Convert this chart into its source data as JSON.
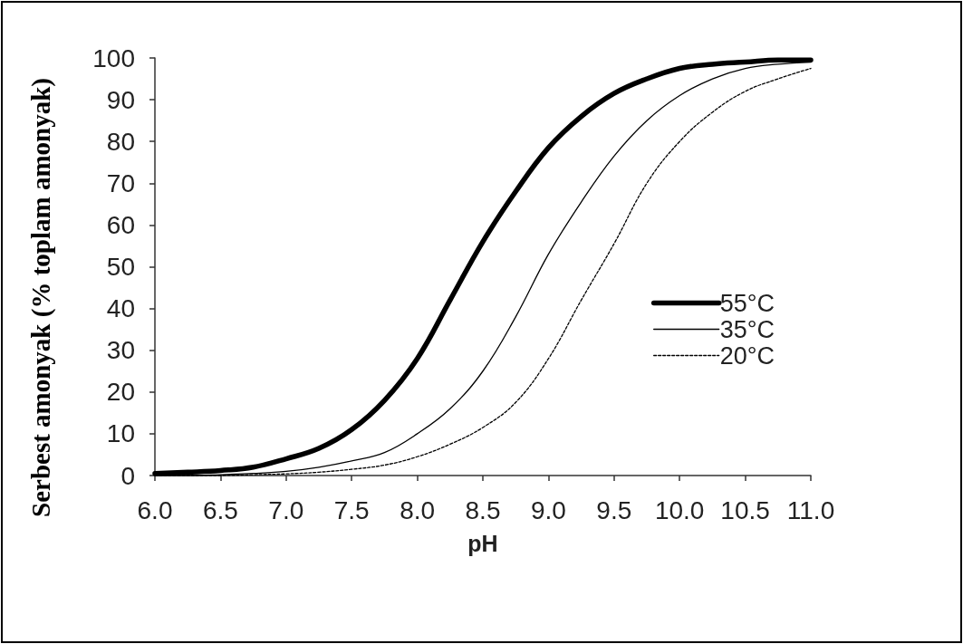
{
  "chart_data": {
    "type": "line",
    "xlabel": "pH",
    "ylabel": "Serbest amonyak (% toplam amonyak)",
    "x": [
      6.0,
      6.25,
      6.5,
      6.75,
      7.0,
      7.25,
      7.5,
      7.75,
      8.0,
      8.25,
      8.5,
      8.75,
      9.0,
      9.25,
      9.5,
      9.75,
      10.0,
      10.25,
      10.5,
      10.75,
      11.0
    ],
    "series": [
      {
        "name": "55°C",
        "color": "#000000",
        "line_style": "solid",
        "values": [
          0.5,
          0.8,
          1.2,
          2,
          4,
          6.5,
          11,
          18,
          28,
          42,
          56,
          68,
          78.5,
          86,
          91.5,
          95,
          97.5,
          98.5,
          99,
          99.5,
          99.5
        ]
      },
      {
        "name": "35°C",
        "color": "#000000",
        "line_style": "solid",
        "values": [
          0,
          0,
          0.2,
          0.5,
          1,
          2,
          3.5,
          5.5,
          10,
          16,
          25,
          38,
          53,
          65.5,
          76.5,
          85,
          91,
          95,
          97.5,
          98.5,
          99
        ]
      },
      {
        "name": "20°C",
        "color": "#000000",
        "line_style": "dashed",
        "values": [
          0,
          0,
          0,
          0.2,
          0.4,
          0.8,
          1.5,
          2.5,
          4.5,
          7.5,
          11.5,
          17.5,
          28,
          42,
          55.5,
          70,
          80,
          87,
          92,
          95,
          97.5
        ]
      }
    ],
    "xlim": [
      6,
      11
    ],
    "ylim": [
      0,
      100
    ],
    "xticks": [
      {
        "value": 6,
        "label": "6.0"
      },
      {
        "value": 6.5,
        "label": "6.5"
      },
      {
        "value": 7,
        "label": "7.0"
      },
      {
        "value": 7.5,
        "label": "7.5"
      },
      {
        "value": 8,
        "label": "8.0"
      },
      {
        "value": 8.5,
        "label": "8.5"
      },
      {
        "value": 9,
        "label": "9.0"
      },
      {
        "value": 9.5,
        "label": "9.5"
      },
      {
        "value": 10,
        "label": "10.0"
      },
      {
        "value": 10.5,
        "label": "10.5"
      },
      {
        "value": 11,
        "label": "11.0"
      }
    ],
    "yticks": [
      0,
      10,
      20,
      30,
      40,
      50,
      60,
      70,
      80,
      90,
      100
    ],
    "grid": false,
    "legend": "right",
    "marker": "none"
  }
}
